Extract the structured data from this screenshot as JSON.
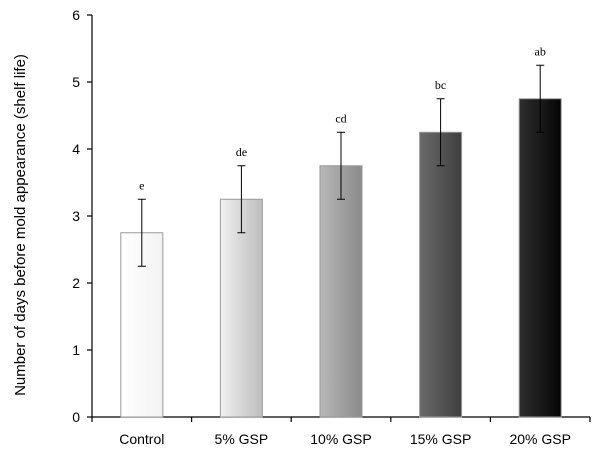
{
  "chart_data": {
    "type": "bar",
    "title": "",
    "xlabel": "",
    "ylabel": "Number of days  before mold appearance (shelf life)",
    "ylim": [
      0,
      6
    ],
    "yticks": [
      0,
      1,
      2,
      3,
      4,
      5,
      6
    ],
    "categories": [
      "Control",
      "5% GSP",
      "10% GSP",
      "15% GSP",
      "20% GSP"
    ],
    "values": [
      2.75,
      3.25,
      3.75,
      4.25,
      4.75
    ],
    "error": [
      0.5,
      0.5,
      0.5,
      0.5,
      0.5
    ],
    "significance_letters": [
      "e",
      "de",
      "cd",
      "bc",
      "ab"
    ],
    "bar_colors": [
      [
        "#ffffff",
        "#f2f2f2"
      ],
      [
        "#f0f0f0",
        "#bdbdbd"
      ],
      [
        "#b8b8b8",
        "#8a8a8a"
      ],
      [
        "#6a6a6a",
        "#3f3f3f"
      ],
      [
        "#2e2e2e",
        "#050505"
      ]
    ],
    "grid": false,
    "legend": "none"
  }
}
